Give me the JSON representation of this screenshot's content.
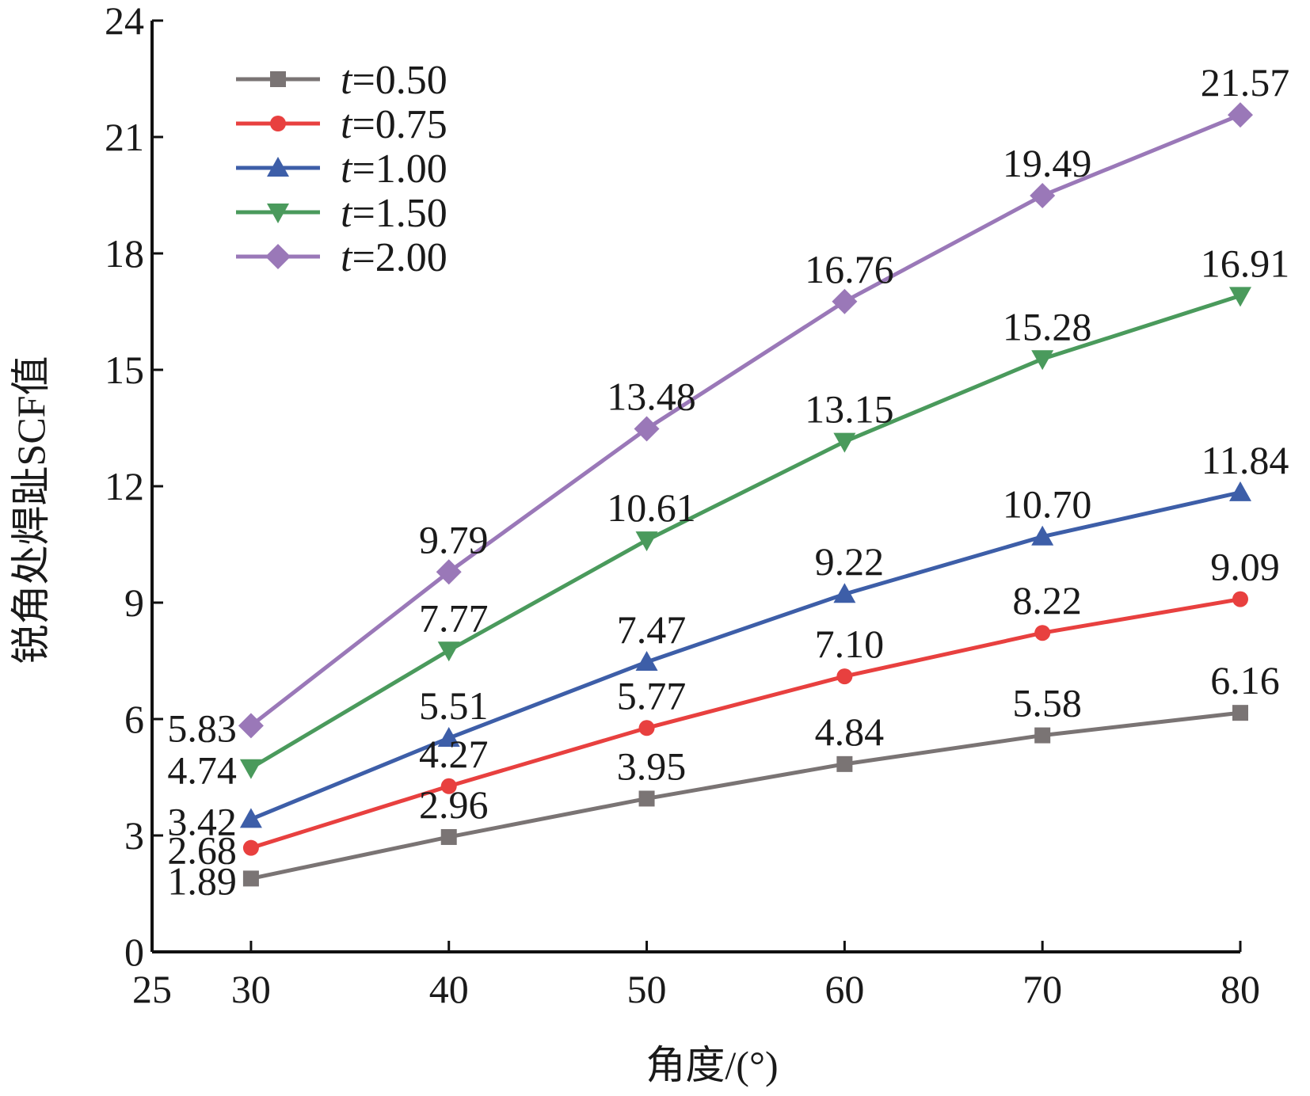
{
  "chart_data": {
    "type": "line",
    "title": "",
    "xlabel": "角度/(°)",
    "ylabel": "锐角处焊趾SCF值",
    "xlim": [
      25,
      80
    ],
    "ylim": [
      0,
      24
    ],
    "xticks": [
      25,
      30,
      40,
      50,
      60,
      70,
      80
    ],
    "yticks": [
      0,
      3,
      6,
      9,
      12,
      15,
      18,
      21,
      24
    ],
    "grid": false,
    "legend_position": "top-left",
    "x": [
      30,
      40,
      50,
      60,
      70,
      80
    ],
    "series": [
      {
        "name_var": "t",
        "name_value": "=0.50",
        "color": "#7a7474",
        "marker": "square",
        "values": [
          1.89,
          2.96,
          3.95,
          4.84,
          5.58,
          6.16
        ],
        "labels": [
          "1.89",
          "2.96",
          "3.95",
          "4.84",
          "5.58",
          "6.16"
        ]
      },
      {
        "name_var": "t",
        "name_value": "=0.75",
        "color": "#e8403f",
        "marker": "circle",
        "values": [
          2.68,
          4.27,
          5.77,
          7.1,
          8.22,
          9.09
        ],
        "labels": [
          "2.68",
          "4.27",
          "5.77",
          "7.10",
          "8.22",
          "9.09"
        ]
      },
      {
        "name_var": "t",
        "name_value": "=1.00",
        "color": "#3d5ea8",
        "marker": "triangle-up",
        "values": [
          3.42,
          5.51,
          7.47,
          9.22,
          10.7,
          11.84
        ],
        "labels": [
          "3.42",
          "5.51",
          "7.47",
          "9.22",
          "10.70",
          "11.84"
        ]
      },
      {
        "name_var": "t",
        "name_value": "=1.50",
        "color": "#4a9a5c",
        "marker": "triangle-down",
        "values": [
          4.74,
          7.77,
          10.61,
          13.15,
          15.28,
          16.91
        ],
        "labels": [
          "4.74",
          "7.77",
          "10.61",
          "13.15",
          "15.28",
          "16.91"
        ]
      },
      {
        "name_var": "t",
        "name_value": "=2.00",
        "color": "#9a78b8",
        "marker": "diamond",
        "values": [
          5.83,
          9.79,
          13.48,
          16.76,
          19.49,
          21.57
        ],
        "labels": [
          "5.83",
          "9.79",
          "13.48",
          "16.76",
          "19.49",
          "21.57"
        ]
      }
    ]
  }
}
